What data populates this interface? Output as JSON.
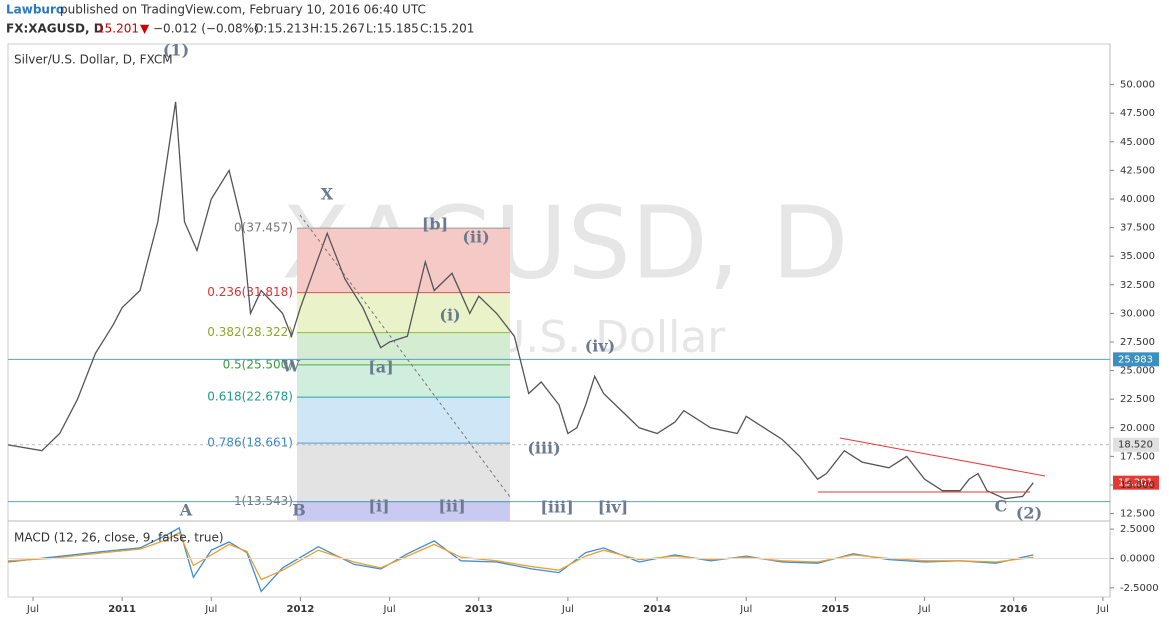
{
  "header": {
    "publisher": "Lawburo",
    "published": "published on TradingView.com, February 10, 2016 06:40 UTC",
    "symbol": "FX:XAGUSD, D",
    "last": "15.201",
    "arrow": "▼",
    "change": "−0.012 (−0.08%)",
    "open": "O:15.213",
    "high": "H:15.267",
    "low": "L:15.185",
    "close": "C:15.201"
  },
  "chart_data": [
    {
      "type": "line",
      "title": "Silver/U.S. Dollar, D, FXCM",
      "watermark": "XAGUSD, D",
      "watermark_sub": "Silver/U.S. Dollar",
      "x": [
        2010.36,
        2010.55,
        2010.65,
        2010.75,
        2010.85,
        2010.95,
        2011.0,
        2011.1,
        2011.2,
        2011.3,
        2011.35,
        2011.42,
        2011.5,
        2011.6,
        2011.67,
        2011.72,
        2011.78,
        2011.9,
        2011.95,
        2012.0,
        2012.15,
        2012.25,
        2012.35,
        2012.45,
        2012.5,
        2012.6,
        2012.7,
        2012.75,
        2012.85,
        2012.95,
        2013.0,
        2013.1,
        2013.2,
        2013.28,
        2013.35,
        2013.45,
        2013.5,
        2013.55,
        2013.6,
        2013.65,
        2013.7,
        2013.8,
        2013.9,
        2014.0,
        2014.1,
        2014.15,
        2014.3,
        2014.45,
        2014.5,
        2014.6,
        2014.7,
        2014.8,
        2014.9,
        2014.95,
        2015.05,
        2015.15,
        2015.3,
        2015.4,
        2015.5,
        2015.6,
        2015.7,
        2015.75,
        2015.8,
        2015.85,
        2015.95,
        2016.05,
        2016.11
      ],
      "series": [
        {
          "name": "XAGUSD",
          "color": "#555555",
          "values": [
            18.5,
            18.0,
            19.5,
            22.5,
            26.5,
            29.0,
            30.5,
            32,
            38,
            48.5,
            38,
            35.5,
            40,
            42.5,
            38,
            30,
            32,
            30,
            28,
            30.5,
            37,
            33,
            30.5,
            27,
            27.5,
            28,
            34.5,
            32,
            33.5,
            30,
            31.5,
            30,
            28,
            23,
            24,
            22,
            19.5,
            20,
            22,
            24.5,
            23,
            21.5,
            20,
            19.5,
            20.5,
            21.5,
            20,
            19.5,
            21,
            20,
            19,
            17.5,
            15.5,
            16,
            18,
            17,
            16.5,
            17.5,
            15.5,
            14.5,
            14.5,
            15.5,
            16,
            14.5,
            13.8,
            14.0,
            15.201
          ]
        }
      ],
      "xlim": [
        2010.36,
        2016.54
      ],
      "xticks": [
        {
          "value": 2010.5,
          "label": "Jul"
        },
        {
          "value": 2011,
          "label": "2011"
        },
        {
          "value": 2011.5,
          "label": "Jul"
        },
        {
          "value": 2012,
          "label": "2012"
        },
        {
          "value": 2012.5,
          "label": "Jul"
        },
        {
          "value": 2013,
          "label": "2013"
        },
        {
          "value": 2013.5,
          "label": "Jul"
        },
        {
          "value": 2014,
          "label": "2014"
        },
        {
          "value": 2014.5,
          "label": "Jul"
        },
        {
          "value": 2015,
          "label": "2015"
        },
        {
          "value": 2015.5,
          "label": "Jul"
        },
        {
          "value": 2016,
          "label": "2016"
        },
        {
          "value": 2016.5,
          "label": "Jul"
        }
      ],
      "ylim": [
        11.85,
        53.55
      ],
      "yticks": [
        {
          "value": 12.5,
          "label": "12.500"
        },
        {
          "value": 15,
          "label": "15.000"
        },
        {
          "value": 17.5,
          "label": "17.500"
        },
        {
          "value": 20,
          "label": "20.000"
        },
        {
          "value": 22.5,
          "label": "22.500"
        },
        {
          "value": 25,
          "label": "25.000"
        },
        {
          "value": 27.5,
          "label": "27.500"
        },
        {
          "value": 30,
          "label": "30.000"
        },
        {
          "value": 32.5,
          "label": "32.500"
        },
        {
          "value": 35,
          "label": "35.000"
        },
        {
          "value": 37.5,
          "label": "37.500"
        },
        {
          "value": 40,
          "label": "40.000"
        },
        {
          "value": 42.5,
          "label": "42.500"
        },
        {
          "value": 45,
          "label": "45.000"
        },
        {
          "value": 47.5,
          "label": "47.500"
        },
        {
          "value": 50,
          "label": "50.000"
        }
      ],
      "fib_levels": [
        {
          "value": 37.457,
          "label": "0(37.457)"
        },
        {
          "value": 31.818,
          "label": "0.236(31.818)"
        },
        {
          "value": 28.322,
          "label": "0.382(28.322)"
        },
        {
          "value": 25.5,
          "label": "0.5(25.500)"
        },
        {
          "value": 22.678,
          "label": "0.618(22.678)"
        },
        {
          "value": 18.661,
          "label": "0.786(18.661)"
        },
        {
          "value": 13.543,
          "label": "1(13.543)"
        }
      ],
      "price_lines": [
        {
          "value": 25.983,
          "label": "25.983"
        },
        {
          "value": 18.52,
          "label": "18.520"
        },
        {
          "value": 15.201,
          "label": "15.201"
        }
      ],
      "annotations": [
        "(1)",
        "X",
        "W",
        "A",
        "B",
        "[b]",
        "(ii)",
        "(i)",
        "[a]",
        "(iv)",
        "(iii)",
        "[i]",
        "[ii]",
        "[iii]",
        "[iv]",
        "C",
        "(2)"
      ]
    },
    {
      "type": "line",
      "title": "MACD (12, 26, close, 9, false, true)",
      "x": [
        2010.36,
        2010.6,
        2010.9,
        2011.1,
        2011.25,
        2011.32,
        2011.4,
        2011.5,
        2011.6,
        2011.7,
        2011.78,
        2011.9,
        2012.1,
        2012.3,
        2012.45,
        2012.6,
        2012.75,
        2012.9,
        2013.1,
        2013.3,
        2013.45,
        2013.6,
        2013.7,
        2013.9,
        2014.1,
        2014.3,
        2014.5,
        2014.7,
        2014.9,
        2015.1,
        2015.3,
        2015.5,
        2015.7,
        2015.9,
        2016.11
      ],
      "series": [
        {
          "name": "MACD",
          "color": "#3d8fd1",
          "values": [
            -0.3,
            0.1,
            0.6,
            0.9,
            2.0,
            2.6,
            -1.6,
            0.7,
            1.4,
            0.5,
            -2.8,
            -0.8,
            1.0,
            -0.5,
            -0.9,
            0.4,
            1.5,
            -0.2,
            -0.3,
            -0.9,
            -1.2,
            0.5,
            0.9,
            -0.3,
            0.3,
            -0.2,
            0.2,
            -0.3,
            -0.4,
            0.4,
            -0.1,
            -0.3,
            -0.2,
            -0.4,
            0.3
          ]
        },
        {
          "name": "Signal",
          "color": "#f0a030",
          "values": [
            -0.2,
            0.0,
            0.5,
            0.8,
            1.6,
            2.2,
            -0.6,
            0.3,
            1.2,
            0.6,
            -1.8,
            -1.0,
            0.7,
            -0.3,
            -0.8,
            0.2,
            1.2,
            0.1,
            -0.2,
            -0.7,
            -1.0,
            0.2,
            0.7,
            -0.1,
            0.2,
            -0.1,
            0.1,
            -0.2,
            -0.3,
            0.3,
            0.0,
            -0.2,
            -0.2,
            -0.3,
            0.1
          ]
        }
      ],
      "xlim": [
        2010.36,
        2016.54
      ],
      "ylim": [
        -3.28,
        3.19
      ],
      "yticks": [
        {
          "value": 2.5,
          "label": "2.5000"
        },
        {
          "value": 0,
          "label": "0.0000"
        },
        {
          "value": -2.5,
          "label": "-2.5000"
        }
      ]
    }
  ]
}
